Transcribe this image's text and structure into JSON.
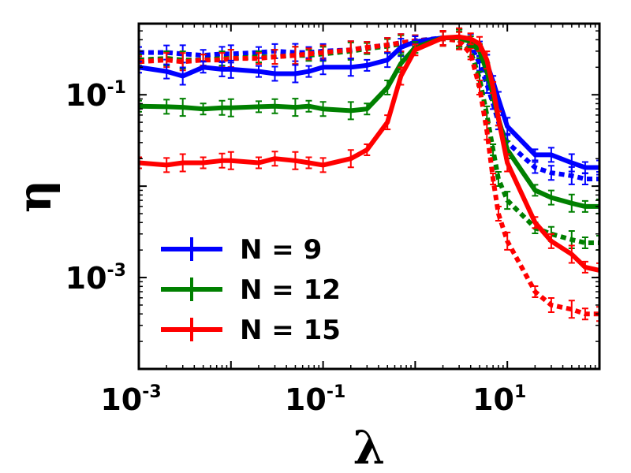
{
  "chart_data": {
    "type": "line",
    "xscale": "log",
    "yscale": "log",
    "xlim": [
      0.001,
      100
    ],
    "ylim": [
      0.0001,
      0.6
    ],
    "xlabel": "λ",
    "ylabel": "η",
    "x_ticks": [
      {
        "value": 0.001,
        "base": "10",
        "exp": "-3"
      },
      {
        "value": 0.1,
        "base": "10",
        "exp": "-1"
      },
      {
        "value": 10,
        "base": "10",
        "exp": "1"
      }
    ],
    "y_ticks": [
      {
        "value": 0.001,
        "base": "10",
        "exp": "-3"
      },
      {
        "value": 0.1,
        "base": "10",
        "exp": "-1"
      }
    ],
    "legend": {
      "position": "lower-left",
      "entries": [
        "N = 9",
        "N = 12",
        "N = 15"
      ]
    },
    "x": [
      0.001,
      0.002,
      0.003,
      0.005,
      0.008,
      0.01,
      0.02,
      0.03,
      0.05,
      0.07,
      0.1,
      0.2,
      0.3,
      0.5,
      0.7,
      1,
      2,
      3,
      4,
      5,
      6,
      7,
      8,
      10,
      20,
      30,
      50,
      70,
      100
    ],
    "series": [
      {
        "name": "N = 9",
        "style": "solid",
        "color": "#0000ff",
        "values": [
          0.2,
          0.18,
          0.16,
          0.2,
          0.19,
          0.19,
          0.18,
          0.17,
          0.17,
          0.18,
          0.2,
          0.2,
          0.21,
          0.24,
          0.33,
          0.38,
          0.42,
          0.42,
          0.4,
          0.32,
          0.22,
          0.14,
          0.09,
          0.045,
          0.022,
          0.022,
          0.018,
          0.016,
          0.016
        ]
      },
      {
        "name": "N = 12",
        "style": "solid",
        "color": "#008000",
        "values": [
          0.075,
          0.074,
          0.073,
          0.07,
          0.072,
          0.072,
          0.074,
          0.075,
          0.073,
          0.075,
          0.07,
          0.067,
          0.07,
          0.12,
          0.22,
          0.33,
          0.42,
          0.42,
          0.38,
          0.3,
          0.18,
          0.1,
          0.055,
          0.025,
          0.009,
          0.0075,
          0.0065,
          0.006,
          0.006
        ]
      },
      {
        "name": "N = 15",
        "style": "solid",
        "color": "#ff0000",
        "values": [
          0.018,
          0.017,
          0.018,
          0.018,
          0.019,
          0.019,
          0.018,
          0.02,
          0.019,
          0.018,
          0.017,
          0.02,
          0.025,
          0.05,
          0.16,
          0.31,
          0.42,
          0.43,
          0.41,
          0.36,
          0.24,
          0.12,
          0.055,
          0.018,
          0.004,
          0.0025,
          0.0018,
          0.0013,
          0.0012
        ]
      },
      {
        "name": "N = 9 (dotted)",
        "style": "dotted",
        "color": "#0000ff",
        "values": [
          0.29,
          0.29,
          0.28,
          0.27,
          0.28,
          0.28,
          0.29,
          0.3,
          0.29,
          0.29,
          0.3,
          0.31,
          0.33,
          0.35,
          0.37,
          0.39,
          0.42,
          0.42,
          0.35,
          0.22,
          0.13,
          0.08,
          0.05,
          0.03,
          0.016,
          0.014,
          0.013,
          0.012,
          0.012
        ]
      },
      {
        "name": "N = 12 (dotted)",
        "style": "dotted",
        "color": "#008000",
        "values": [
          0.24,
          0.25,
          0.24,
          0.24,
          0.25,
          0.25,
          0.26,
          0.26,
          0.27,
          0.27,
          0.28,
          0.3,
          0.32,
          0.34,
          0.36,
          0.39,
          0.41,
          0.4,
          0.3,
          0.15,
          0.06,
          0.025,
          0.012,
          0.007,
          0.0035,
          0.003,
          0.0026,
          0.0024,
          0.0024
        ]
      },
      {
        "name": "N = 15 (dotted)",
        "style": "dotted",
        "color": "#ff0000",
        "values": [
          0.23,
          0.24,
          0.23,
          0.24,
          0.24,
          0.25,
          0.25,
          0.26,
          0.27,
          0.28,
          0.29,
          0.31,
          0.33,
          0.35,
          0.37,
          0.39,
          0.41,
          0.39,
          0.28,
          0.12,
          0.04,
          0.012,
          0.005,
          0.0025,
          0.0007,
          0.0005,
          0.00045,
          0.0004,
          0.0004
        ]
      }
    ]
  }
}
